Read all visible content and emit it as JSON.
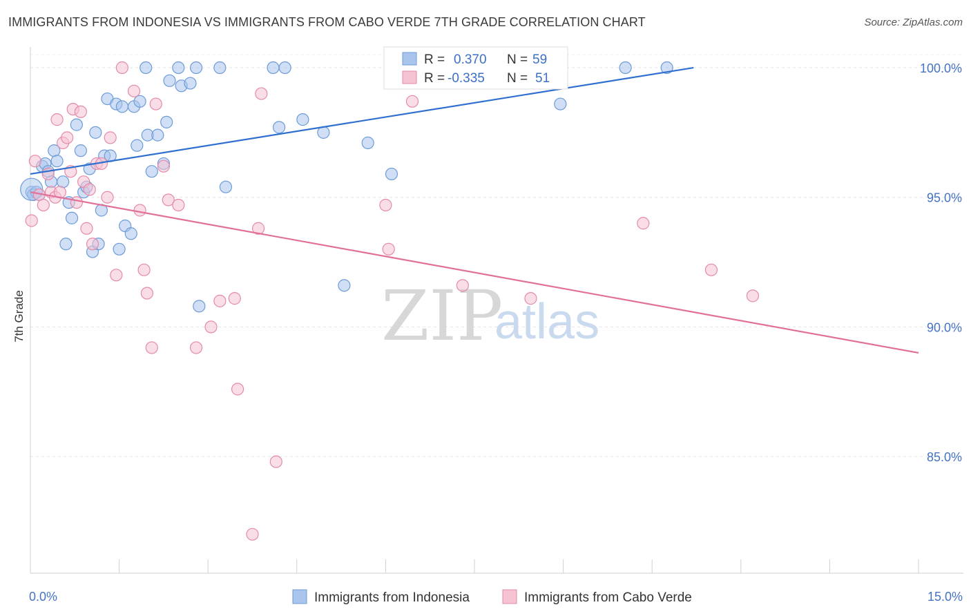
{
  "title": "IMMIGRANTS FROM INDONESIA VS IMMIGRANTS FROM CABO VERDE 7TH GRADE CORRELATION CHART",
  "source": "Source: ZipAtlas.com",
  "watermark": {
    "zip": "ZIP",
    "atlas": "atlas"
  },
  "chart_data": {
    "type": "scatter",
    "title": "IMMIGRANTS FROM INDONESIA VS IMMIGRANTS FROM CABO VERDE 7TH GRADE CORRELATION CHART",
    "xlabel": "",
    "ylabel": "7th Grade",
    "xlim": [
      0,
      15
    ],
    "ylim": [
      80.5,
      100.8
    ],
    "x_ticks": [
      {
        "value": 0,
        "label": "0.0%"
      },
      {
        "value": 15,
        "label": "15.0%"
      }
    ],
    "y_ticks": [
      {
        "value": 100,
        "label": "100.0%"
      },
      {
        "value": 95,
        "label": "95.0%"
      },
      {
        "value": 90,
        "label": "90.0%"
      },
      {
        "value": 85,
        "label": "85.0%"
      }
    ],
    "grid": true,
    "legend_position": "top-center",
    "stats": [
      {
        "r_label": "R =",
        "r": "0.370",
        "n_label": "N =",
        "n": "59"
      },
      {
        "r_label": "R =",
        "r": "-0.335",
        "n_label": "N =",
        "n": "51"
      }
    ],
    "series": [
      {
        "name": "Immigrants from Indonesia",
        "color": "#a9c5ec",
        "stroke": "#6c9bd8",
        "trend_color": "#2f6fcf",
        "trendline": [
          [
            0,
            95.9
          ],
          [
            11.2,
            100
          ]
        ],
        "points": [
          [
            0.02,
            95.2
          ],
          [
            0.05,
            95.1
          ],
          [
            0.1,
            95.2
          ],
          [
            0.15,
            95.1
          ],
          [
            0.2,
            96.2
          ],
          [
            0.25,
            96.3
          ],
          [
            0.3,
            96.0
          ],
          [
            0.35,
            95.6
          ],
          [
            0.4,
            96.8
          ],
          [
            0.45,
            96.4
          ],
          [
            0.55,
            95.6
          ],
          [
            0.6,
            93.2
          ],
          [
            0.65,
            94.8
          ],
          [
            0.7,
            94.2
          ],
          [
            0.78,
            97.8
          ],
          [
            0.85,
            96.8
          ],
          [
            0.9,
            95.2
          ],
          [
            0.95,
            95.4
          ],
          [
            1.0,
            96.1
          ],
          [
            1.05,
            92.9
          ],
          [
            1.1,
            97.5
          ],
          [
            1.15,
            93.2
          ],
          [
            1.2,
            94.5
          ],
          [
            1.25,
            96.6
          ],
          [
            1.3,
            98.8
          ],
          [
            1.35,
            96.6
          ],
          [
            1.45,
            98.6
          ],
          [
            1.5,
            93.0
          ],
          [
            1.55,
            98.5
          ],
          [
            1.6,
            93.9
          ],
          [
            1.7,
            93.6
          ],
          [
            1.75,
            98.5
          ],
          [
            1.8,
            97.0
          ],
          [
            1.85,
            98.7
          ],
          [
            1.95,
            100
          ],
          [
            1.98,
            97.4
          ],
          [
            2.05,
            96.0
          ],
          [
            2.15,
            97.4
          ],
          [
            2.25,
            96.3
          ],
          [
            2.3,
            97.9
          ],
          [
            2.35,
            99.5
          ],
          [
            2.5,
            100
          ],
          [
            2.55,
            99.3
          ],
          [
            2.7,
            99.4
          ],
          [
            2.8,
            100
          ],
          [
            2.85,
            90.8
          ],
          [
            3.2,
            100
          ],
          [
            3.3,
            95.4
          ],
          [
            4.1,
            100
          ],
          [
            4.2,
            97.7
          ],
          [
            4.3,
            100
          ],
          [
            4.6,
            98.0
          ],
          [
            4.95,
            97.5
          ],
          [
            5.3,
            91.6
          ],
          [
            5.7,
            97.1
          ],
          [
            6.1,
            95.9
          ],
          [
            8.95,
            98.6
          ],
          [
            10.05,
            100
          ],
          [
            10.75,
            100
          ]
        ]
      },
      {
        "name": "Immigrants from Cabo Verde",
        "color": "#f6c3d3",
        "stroke": "#e48aa8",
        "trend_color": "#e0709a",
        "trendline": [
          [
            0,
            95.2
          ],
          [
            15,
            89.0
          ]
        ],
        "points": [
          [
            0.02,
            94.1
          ],
          [
            0.08,
            96.4
          ],
          [
            0.15,
            95.1
          ],
          [
            0.22,
            94.7
          ],
          [
            0.3,
            95.9
          ],
          [
            0.35,
            95.2
          ],
          [
            0.42,
            95.0
          ],
          [
            0.45,
            98.0
          ],
          [
            0.5,
            95.2
          ],
          [
            0.55,
            97.1
          ],
          [
            0.62,
            97.3
          ],
          [
            0.68,
            96.0
          ],
          [
            0.72,
            98.4
          ],
          [
            0.78,
            94.8
          ],
          [
            0.85,
            98.3
          ],
          [
            0.9,
            95.6
          ],
          [
            0.95,
            93.8
          ],
          [
            1.0,
            95.3
          ],
          [
            1.05,
            93.2
          ],
          [
            1.12,
            96.3
          ],
          [
            1.2,
            96.3
          ],
          [
            1.3,
            95.0
          ],
          [
            1.35,
            97.3
          ],
          [
            1.45,
            92.0
          ],
          [
            1.55,
            100
          ],
          [
            1.75,
            99.1
          ],
          [
            1.85,
            94.5
          ],
          [
            1.92,
            92.2
          ],
          [
            1.97,
            91.3
          ],
          [
            2.05,
            89.2
          ],
          [
            2.12,
            98.6
          ],
          [
            2.25,
            96.2
          ],
          [
            2.33,
            94.9
          ],
          [
            2.5,
            94.7
          ],
          [
            2.8,
            89.2
          ],
          [
            3.05,
            90.0
          ],
          [
            3.2,
            91.0
          ],
          [
            3.45,
            91.1
          ],
          [
            3.5,
            87.6
          ],
          [
            3.75,
            82.0
          ],
          [
            3.85,
            93.8
          ],
          [
            3.9,
            99.0
          ],
          [
            4.15,
            84.8
          ],
          [
            6.0,
            94.7
          ],
          [
            6.05,
            93.0
          ],
          [
            6.45,
            98.7
          ],
          [
            7.3,
            91.6
          ],
          [
            8.45,
            91.1
          ],
          [
            10.35,
            94.0
          ],
          [
            11.5,
            92.2
          ],
          [
            12.2,
            91.2
          ]
        ]
      }
    ]
  }
}
